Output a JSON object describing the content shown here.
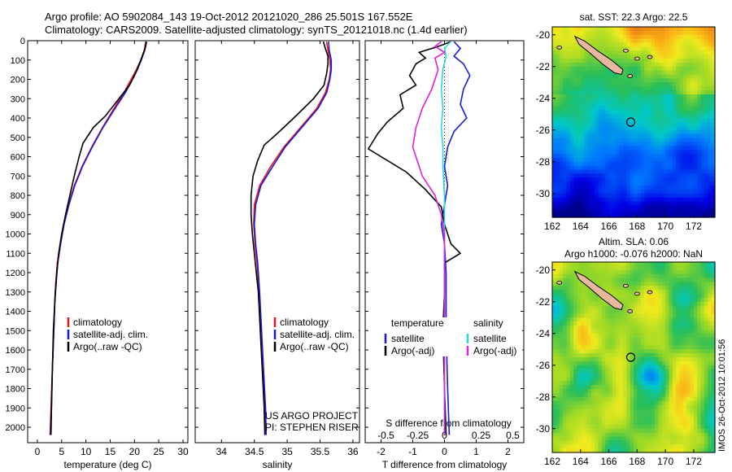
{
  "header": {
    "line1": "Argo profile: AO 5902084_143 19-Oct-2012 20121020_286 25.501S 167.552E",
    "line2": "Climatology: CARS2009. Satellite-adjusted climatology: synTS_20121018.nc (1.4d earlier)"
  },
  "side_credit": "IMOS 26-Oct-2012 10:01:56",
  "colors": {
    "climatology": "#e8141e",
    "satellite": "#1a1ad2",
    "argo": "#000000",
    "sat_diff_s": "#22dcdc",
    "argo_diff_s": "#e01ee0"
  },
  "chart_data": [
    {
      "type": "line",
      "xlabel": "temperature (deg C)",
      "xlim": [
        -2,
        31
      ],
      "xticks": [
        0,
        5,
        10,
        15,
        20,
        25,
        30
      ],
      "ylim": [
        2080,
        0
      ],
      "yticks": [
        0,
        100,
        200,
        300,
        400,
        500,
        600,
        700,
        800,
        900,
        1000,
        1100,
        1200,
        1300,
        1400,
        1500,
        1600,
        1700,
        1800,
        1900,
        2000
      ],
      "legend": {
        "placement": "center-right",
        "entries": [
          "climatology",
          "satellite-adj. clim.",
          "Argo(..raw -QC)"
        ]
      },
      "series": [
        {
          "name": "climatology",
          "color": "#e8141e",
          "points": [
            [
              22.3,
              5
            ],
            [
              22.0,
              50
            ],
            [
              21.3,
              100
            ],
            [
              20.4,
              150
            ],
            [
              19.3,
              200
            ],
            [
              17.8,
              270
            ],
            [
              15.8,
              350
            ],
            [
              13.4,
              450
            ],
            [
              11.2,
              550
            ],
            [
              9.2,
              650
            ],
            [
              7.6,
              750
            ],
            [
              6.4,
              850
            ],
            [
              5.4,
              950
            ],
            [
              4.7,
              1050
            ],
            [
              4.1,
              1150
            ],
            [
              3.8,
              1250
            ],
            [
              3.6,
              1350
            ],
            [
              3.4,
              1500
            ],
            [
              3.1,
              1700
            ],
            [
              2.8,
              1900
            ],
            [
              2.6,
              2040
            ]
          ]
        },
        {
          "name": "satellite-adj. clim.",
          "color": "#1a1ad2",
          "points": [
            [
              22.4,
              5
            ],
            [
              22.1,
              50
            ],
            [
              21.4,
              100
            ],
            [
              20.6,
              150
            ],
            [
              19.6,
              200
            ],
            [
              18.1,
              270
            ],
            [
              16.0,
              350
            ],
            [
              13.5,
              450
            ],
            [
              11.3,
              550
            ],
            [
              9.3,
              650
            ],
            [
              7.7,
              750
            ],
            [
              6.5,
              850
            ],
            [
              5.5,
              950
            ],
            [
              4.8,
              1050
            ],
            [
              4.2,
              1150
            ],
            [
              3.9,
              1250
            ],
            [
              3.6,
              1350
            ],
            [
              3.4,
              1500
            ],
            [
              3.1,
              1700
            ],
            [
              2.9,
              1900
            ],
            [
              2.7,
              2040
            ]
          ]
        },
        {
          "name": "Argo(..raw -QC)",
          "color": "#000000",
          "points": [
            [
              22.5,
              5
            ],
            [
              22.2,
              40
            ],
            [
              21.6,
              80
            ],
            [
              21.0,
              120
            ],
            [
              20.2,
              170
            ],
            [
              19.0,
              230
            ],
            [
              16.8,
              300
            ],
            [
              14.0,
              390
            ],
            [
              11.5,
              450
            ],
            [
              9.4,
              530
            ],
            [
              8.6,
              600
            ],
            [
              7.6,
              700
            ],
            [
              6.7,
              800
            ],
            [
              5.8,
              900
            ],
            [
              5.0,
              1000
            ],
            [
              4.4,
              1100
            ],
            [
              4.0,
              1200
            ],
            [
              3.7,
              1300
            ],
            [
              3.5,
              1400
            ],
            [
              3.3,
              1500
            ],
            [
              3.1,
              1700
            ],
            [
              2.9,
              1900
            ],
            [
              2.8,
              2040
            ]
          ]
        }
      ]
    },
    {
      "type": "line",
      "xlabel": "salinity",
      "xlim": [
        33.6,
        36.1
      ],
      "xticks": [
        34,
        34.5,
        35,
        35.5,
        36
      ],
      "ylim": [
        2080,
        0
      ],
      "legend": {
        "placement": "center-right",
        "entries": [
          "climatology",
          "satellite-adj. clim.",
          "Argo(..raw -QC)"
        ]
      },
      "annotations": [
        "US ARGO PROJECT",
        "PI: STEPHEN RISER"
      ],
      "series": [
        {
          "name": "climatology",
          "color": "#e8141e",
          "points": [
            [
              35.6,
              5
            ],
            [
              35.62,
              50
            ],
            [
              35.65,
              100
            ],
            [
              35.66,
              150
            ],
            [
              35.64,
              200
            ],
            [
              35.58,
              270
            ],
            [
              35.45,
              350
            ],
            [
              35.2,
              450
            ],
            [
              34.95,
              550
            ],
            [
              34.75,
              650
            ],
            [
              34.58,
              750
            ],
            [
              34.5,
              850
            ],
            [
              34.49,
              950
            ],
            [
              34.51,
              1050
            ],
            [
              34.54,
              1150
            ],
            [
              34.57,
              1300
            ],
            [
              34.6,
              1500
            ],
            [
              34.63,
              1700
            ],
            [
              34.66,
              1900
            ],
            [
              34.67,
              2040
            ]
          ]
        },
        {
          "name": "satellite-adj. clim.",
          "color": "#1a1ad2",
          "points": [
            [
              35.63,
              5
            ],
            [
              35.64,
              50
            ],
            [
              35.67,
              100
            ],
            [
              35.67,
              150
            ],
            [
              35.65,
              200
            ],
            [
              35.6,
              270
            ],
            [
              35.47,
              350
            ],
            [
              35.22,
              450
            ],
            [
              34.97,
              550
            ],
            [
              34.78,
              650
            ],
            [
              34.6,
              750
            ],
            [
              34.52,
              850
            ],
            [
              34.5,
              950
            ],
            [
              34.52,
              1050
            ],
            [
              34.55,
              1150
            ],
            [
              34.58,
              1300
            ],
            [
              34.61,
              1500
            ],
            [
              34.64,
              1700
            ],
            [
              34.67,
              1900
            ],
            [
              34.68,
              2040
            ]
          ]
        },
        {
          "name": "Argo(..raw -QC)",
          "color": "#000000",
          "points": [
            [
              35.55,
              5
            ],
            [
              35.58,
              40
            ],
            [
              35.62,
              80
            ],
            [
              35.62,
              120
            ],
            [
              35.6,
              170
            ],
            [
              35.56,
              230
            ],
            [
              35.4,
              300
            ],
            [
              35.1,
              400
            ],
            [
              34.85,
              480
            ],
            [
              34.65,
              540
            ],
            [
              34.55,
              620
            ],
            [
              34.48,
              700
            ],
            [
              34.45,
              800
            ],
            [
              34.45,
              900
            ],
            [
              34.47,
              1000
            ],
            [
              34.5,
              1100
            ],
            [
              34.53,
              1200
            ],
            [
              34.56,
              1300
            ],
            [
              34.59,
              1500
            ],
            [
              34.62,
              1700
            ],
            [
              34.65,
              1900
            ],
            [
              34.66,
              2040
            ]
          ]
        }
      ]
    },
    {
      "type": "line",
      "xlabel": "T difference from climatology",
      "xlabel_top": "S difference from climatology",
      "xlim": [
        -2.5,
        2.5
      ],
      "xticks": [
        -2,
        -1,
        0,
        1,
        2
      ],
      "xticks_top_labels": [
        "-0.5",
        "-0.25",
        "0",
        "0.25",
        "0.5"
      ],
      "xticks_top_values": [
        -2,
        -1,
        0,
        1,
        2
      ],
      "ylim": [
        2080,
        0
      ],
      "legend": {
        "placement": "center",
        "groups": [
          {
            "title": "temperature",
            "entries": [
              "satellite",
              "Argo(-adj)"
            ]
          },
          {
            "title": "salinity",
            "entries": [
              "satellite",
              "Argo(-adj)"
            ]
          }
        ]
      },
      "series": [
        {
          "name": "satellite",
          "group": "temperature",
          "color": "#1a1ad2",
          "points": [
            [
              0.3,
              5
            ],
            [
              0.5,
              40
            ],
            [
              0.3,
              80
            ],
            [
              0.6,
              120
            ],
            [
              0.8,
              180
            ],
            [
              0.6,
              250
            ],
            [
              0.5,
              330
            ],
            [
              0.7,
              400
            ],
            [
              0.3,
              470
            ],
            [
              0.1,
              550
            ],
            [
              0.0,
              650
            ],
            [
              0.1,
              750
            ],
            [
              0.0,
              850
            ],
            [
              -0.1,
              950
            ],
            [
              0.0,
              1050
            ],
            [
              0.05,
              1200
            ],
            [
              0.05,
              1500
            ],
            [
              0.1,
              1800
            ],
            [
              0.15,
              2040
            ]
          ]
        },
        {
          "name": "Argo(-adj)",
          "group": "temperature",
          "color": "#000000",
          "points": [
            [
              0.2,
              5
            ],
            [
              -0.2,
              30
            ],
            [
              -0.8,
              60
            ],
            [
              -0.6,
              90
            ],
            [
              -0.9,
              120
            ],
            [
              -1.1,
              180
            ],
            [
              -0.9,
              230
            ],
            [
              -1.4,
              280
            ],
            [
              -1.3,
              350
            ],
            [
              -1.8,
              420
            ],
            [
              -2.1,
              480
            ],
            [
              -2.4,
              560
            ],
            [
              -1.2,
              680
            ],
            [
              -0.6,
              770
            ],
            [
              -0.1,
              860
            ],
            [
              0.0,
              950
            ],
            [
              0.2,
              1050
            ],
            [
              0.5,
              1100
            ],
            [
              0.0,
              1150
            ],
            [
              0.0,
              1300
            ],
            [
              -0.05,
              1500
            ],
            [
              0.0,
              1800
            ],
            [
              0.05,
              2040
            ]
          ]
        },
        {
          "name": "satellite",
          "group": "salinity",
          "color": "#22dcdc",
          "points": [
            [
              0.2,
              5
            ],
            [
              0.0,
              40
            ],
            [
              0.05,
              80
            ],
            [
              -0.05,
              150
            ],
            [
              -0.1,
              250
            ],
            [
              -0.05,
              350
            ],
            [
              -0.1,
              450
            ],
            [
              -0.05,
              550
            ],
            [
              -0.05,
              650
            ],
            [
              0.0,
              800
            ],
            [
              0.0,
              1000
            ],
            [
              0.0,
              1300
            ],
            [
              0.0,
              1600
            ],
            [
              0.0,
              1900
            ],
            [
              0.0,
              2040
            ]
          ]
        },
        {
          "name": "Argo(-adj)",
          "group": "salinity",
          "color": "#e01ee0",
          "points": [
            [
              -0.1,
              5
            ],
            [
              -0.3,
              30
            ],
            [
              0.0,
              60
            ],
            [
              -0.3,
              90
            ],
            [
              -0.2,
              150
            ],
            [
              -0.4,
              250
            ],
            [
              -0.7,
              350
            ],
            [
              -0.9,
              450
            ],
            [
              -1.0,
              550
            ],
            [
              -0.7,
              700
            ],
            [
              -0.3,
              800
            ],
            [
              -0.1,
              900
            ],
            [
              0.0,
              1000
            ],
            [
              0.0,
              1200
            ],
            [
              0.0,
              1500
            ],
            [
              0.0,
              1800
            ],
            [
              0.0,
              2040
            ]
          ]
        }
      ]
    },
    {
      "type": "heatmap",
      "title": "sat. SST: 22.3 Argo: 22.5",
      "xticks": [
        162,
        164,
        166,
        168,
        170,
        172
      ],
      "yticks": [
        -20,
        -22,
        -24,
        -26,
        -28,
        -30
      ],
      "xlim": [
        162,
        173.5
      ],
      "ylim": [
        -31.5,
        -19.5
      ],
      "marker": [
        167.55,
        -25.5
      ]
    },
    {
      "type": "heatmap",
      "title": "Altim. SLA: 0.06",
      "subtitle": "Argo h1000: -0.076 h2000: NaN",
      "xticks": [
        162,
        164,
        166,
        168,
        170,
        172
      ],
      "yticks": [
        -20,
        -22,
        -24,
        -26,
        -28,
        -30
      ],
      "xlim": [
        162,
        173.5
      ],
      "ylim": [
        -31.5,
        -19.5
      ],
      "marker": [
        167.55,
        -25.5
      ]
    }
  ]
}
